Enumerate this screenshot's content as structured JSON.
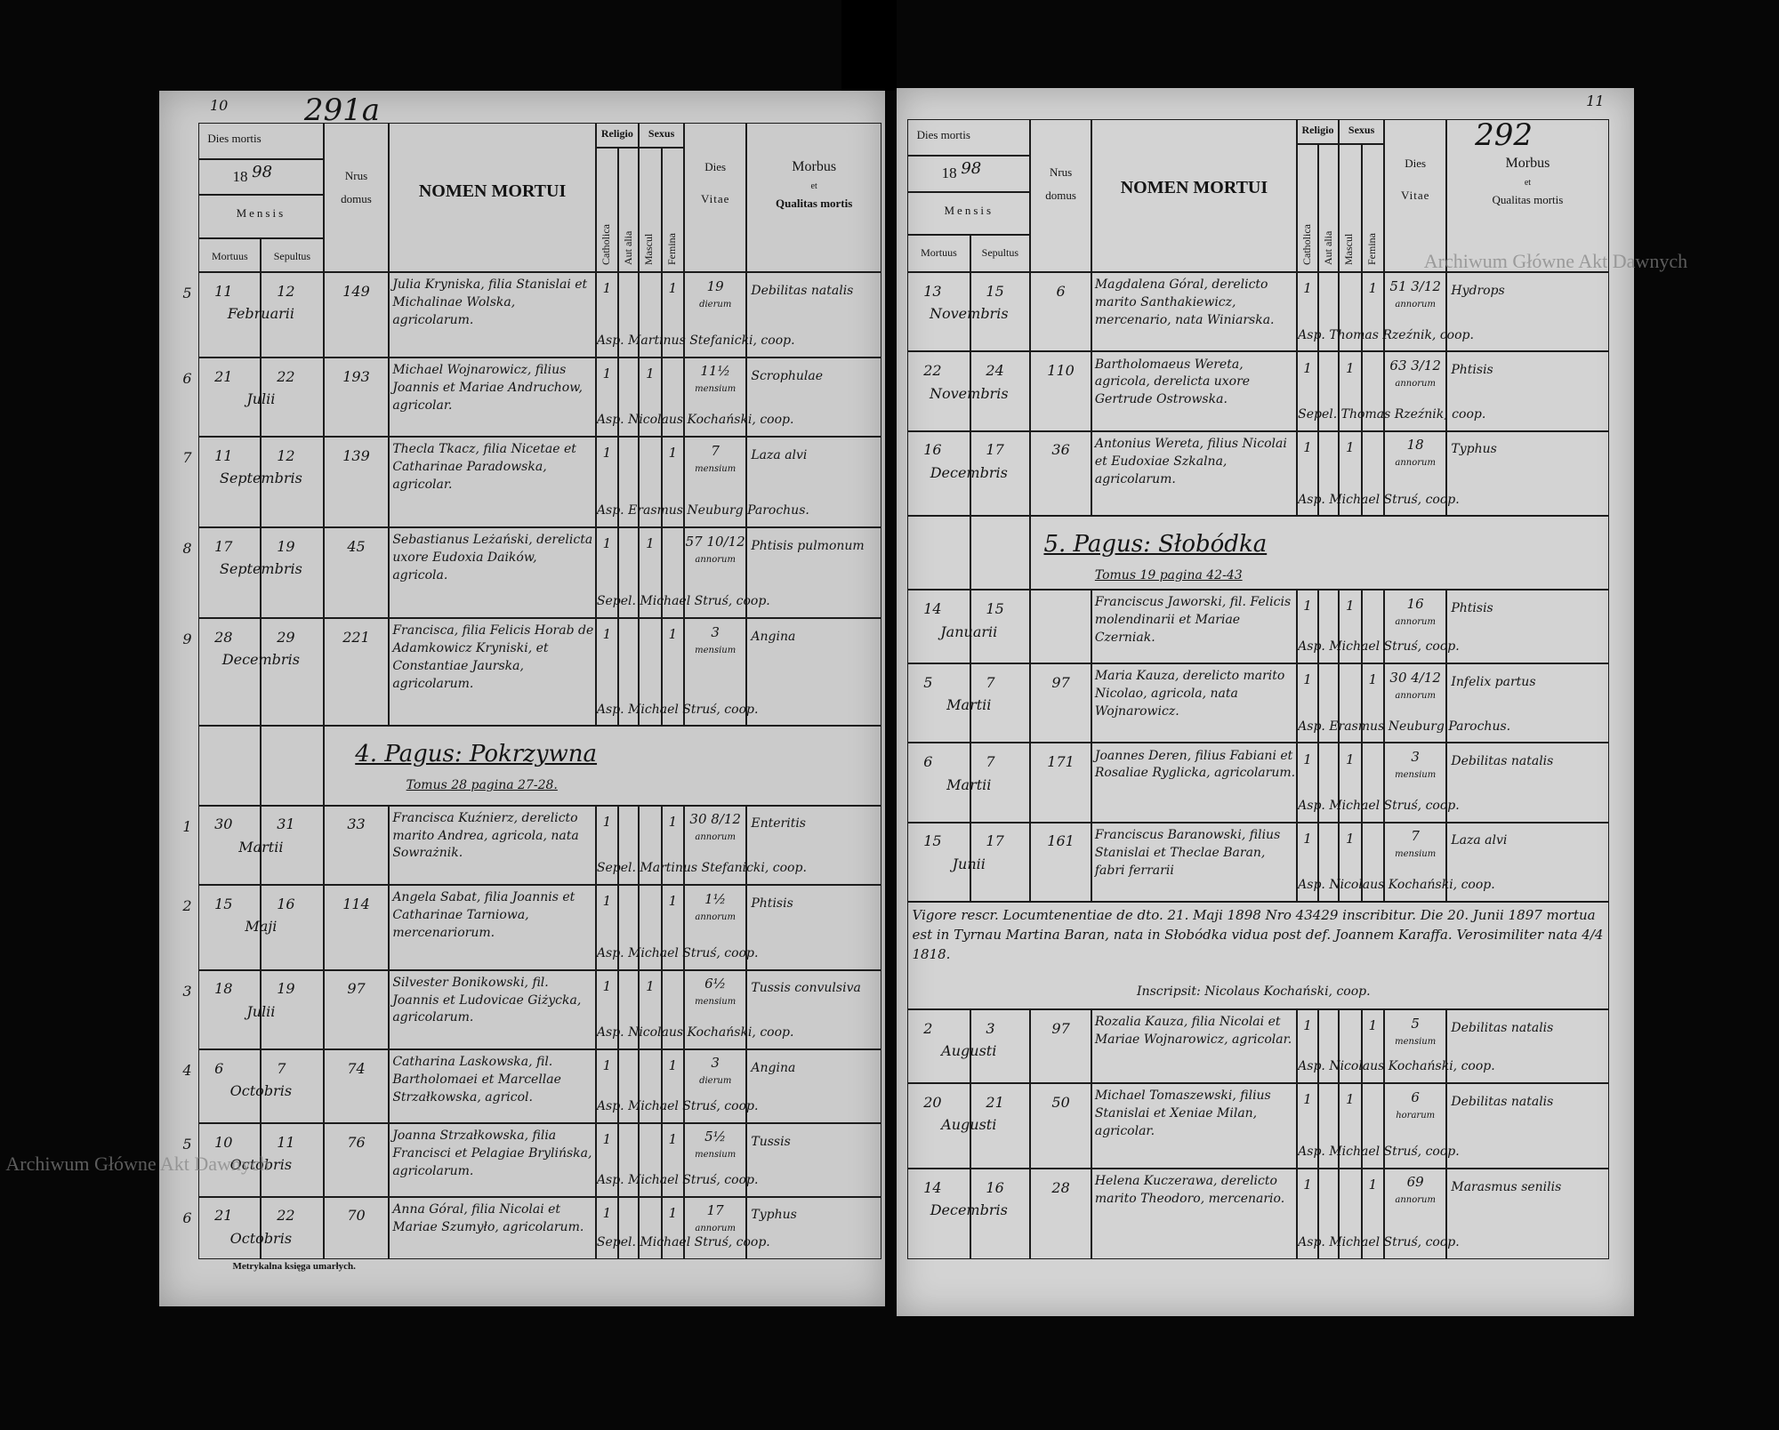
{
  "watermark": "Archiwum Główne Akt Dawnych",
  "header": {
    "dies_mortis": "Dies mortis",
    "year_prefix": "18",
    "mensis": "Mensis",
    "mortuus": "Mortuus",
    "sepultus": "Sepultus",
    "nrus": "Nrus",
    "domus": "domus",
    "nomen_mortui": "NOMEN MORTUI",
    "religio": "Religio",
    "sexus": "Sexus",
    "catholica": "Catholica",
    "aut_alia": "Aut alia",
    "mascul": "Mascul",
    "femina": "Femina",
    "dies": "Dies",
    "vitae": "Vitae",
    "morbus": "Morbus",
    "et": "et",
    "qualitas_mortis": "Qualitas mortis"
  },
  "pages": [
    {
      "page_number": "10",
      "folio": "291a",
      "year_suffix": "98",
      "rows": [
        {
          "no": "5",
          "mortuus": "11",
          "sepultus": "12",
          "mensis": "Februarii",
          "domus": "149",
          "nomen": "Julia Kryniska, filia Stanislai et Michalinae Wolska, agricolarum.",
          "catholica": "1",
          "femina": "1",
          "vitae": "19",
          "vitae_unit": "dierum",
          "morbus": "Debilitas natalis",
          "sepultura": "Asp. Martinus Stefanicki, coop."
        },
        {
          "no": "6",
          "mortuus": "21",
          "sepultus": "22",
          "mensis": "Julii",
          "domus": "193",
          "nomen": "Michael Wojnarowicz, filius Joannis et Mariae Andruchow, agricolar.",
          "catholica": "1",
          "mascul": "1",
          "vitae": "11½",
          "vitae_unit": "mensium",
          "morbus": "Scrophulae",
          "sepultura": "Asp. Nicolaus Kochański, coop."
        },
        {
          "no": "7",
          "mortuus": "11",
          "sepultus": "12",
          "mensis": "Septembris",
          "domus": "139",
          "nomen": "Thecla Tkacz, filia Nicetae et Catharinae Paradowska, agricolar.",
          "catholica": "1",
          "femina": "1",
          "vitae": "7",
          "vitae_unit": "mensium",
          "morbus": "Laza alvi",
          "sepultura": "Asp. Erasmus Neuburg Parochus."
        },
        {
          "no": "8",
          "mortuus": "17",
          "sepultus": "19",
          "mensis": "Septembris",
          "domus": "45",
          "nomen": "Sebastianus Leżański, derelicta uxore Eudoxia Daików, agricola.",
          "catholica": "1",
          "mascul": "1",
          "vitae": "57 10/12",
          "vitae_unit": "annorum",
          "morbus": "Phtisis pulmonum",
          "sepultura": "Sepel. Michael Struś, coop."
        },
        {
          "no": "9",
          "mortuus": "28",
          "sepultus": "29",
          "mensis": "Decembris",
          "domus": "221",
          "nomen": "Francisca, filia Felicis Horab de Adamkowicz Kryniski, et Constantiae Jaurska, agricolarum.",
          "catholica": "1",
          "femina": "1",
          "vitae": "3",
          "vitae_unit": "mensium",
          "morbus": "Angina",
          "sepultura": "Asp. Michael Struś, coop."
        },
        {
          "section": "4. Pagus: Pokrzywna",
          "tomus": "Tomus 28 pagina 27-28."
        },
        {
          "no": "1",
          "mortuus": "30",
          "sepultus": "31",
          "mensis": "Martii",
          "domus": "33",
          "nomen": "Francisca Kuźnierz, derelicto marito Andrea, agricola, nata Sowrażnik.",
          "catholica": "1",
          "femina": "1",
          "vitae": "30 8/12",
          "vitae_unit": "annorum",
          "morbus": "Enteritis",
          "sepultura": "Sepel. Martinus Stefanicki, coop."
        },
        {
          "no": "2",
          "mortuus": "15",
          "sepultus": "16",
          "mensis": "Maji",
          "domus": "114",
          "nomen": "Angela Sabat, filia Joannis et Catharinae Tarniowa, mercenariorum.",
          "catholica": "1",
          "femina": "1",
          "vitae": "1½",
          "vitae_unit": "annorum",
          "morbus": "Phtisis",
          "sepultura": "Asp. Michael Struś, coop."
        },
        {
          "no": "3",
          "mortuus": "18",
          "sepultus": "19",
          "mensis": "Julii",
          "domus": "97",
          "nomen": "Silvester Bonikowski, fil. Joannis et Ludovicae Giżycka, agricolarum.",
          "catholica": "1",
          "mascul": "1",
          "vitae": "6½",
          "vitae_unit": "mensium",
          "morbus": "Tussis convulsiva",
          "sepultura": "Asp. Nicolaus Kochański, coop."
        },
        {
          "no": "4",
          "mortuus": "6",
          "sepultus": "7",
          "mensis": "Octobris",
          "domus": "74",
          "nomen": "Catharina Laskowska, fil. Bartholomaei et Marcellae Strzałkowska, agricol.",
          "catholica": "1",
          "femina": "1",
          "vitae": "3",
          "vitae_unit": "dierum",
          "morbus": "Angina",
          "sepultura": "Asp. Michael Struś, coop."
        },
        {
          "no": "5",
          "mortuus": "10",
          "sepultus": "11",
          "mensis": "Octobris",
          "domus": "76",
          "nomen": "Joanna Strzałkowska, filia Francisci et Pelagiae Brylińska, agricolarum.",
          "catholica": "1",
          "femina": "1",
          "vitae": "5½",
          "vitae_unit": "mensium",
          "morbus": "Tussis",
          "sepultura": "Asp. Michael Struś, coop."
        },
        {
          "no": "6",
          "mortuus": "21",
          "sepultus": "22",
          "mensis": "Octobris",
          "domus": "70",
          "nomen": "Anna Góral, filia Nicolai et Mariae Szumyło, agricolarum.",
          "catholica": "1",
          "femina": "1",
          "vitae": "17",
          "vitae_unit": "annorum",
          "morbus": "Typhus",
          "sepultura": "Sepel. Michael Struś, coop."
        }
      ],
      "footer": "Metrykalna księga umarłych."
    },
    {
      "page_number": "11",
      "folio": "292",
      "year_suffix": "98",
      "rows": [
        {
          "mortuus": "13",
          "sepultus": "15",
          "mensis": "Novembris",
          "domus": "6",
          "nomen": "Magdalena Góral, derelicto marito Santhakiewicz, mercenario, nata Winiarska.",
          "catholica": "1",
          "femina": "1",
          "vitae": "51 3/12",
          "vitae_unit": "annorum",
          "morbus": "Hydrops",
          "sepultura": "Asp. Thomas Rzeźnik, coop."
        },
        {
          "mortuus": "22",
          "sepultus": "24",
          "mensis": "Novembris",
          "domus": "110",
          "nomen": "Bartholomaeus Wereta, agricola, derelicta uxore Gertrude Ostrowska.",
          "catholica": "1",
          "mascul": "1",
          "vitae": "63 3/12",
          "vitae_unit": "annorum",
          "morbus": "Phtisis",
          "sepultura": "Sepel. Thomas Rzeźnik, coop."
        },
        {
          "mortuus": "16",
          "sepultus": "17",
          "mensis": "Decembris",
          "domus": "36",
          "nomen": "Antonius Wereta, filius Nicolai et Eudoxiae Szkalna, agricolarum.",
          "catholica": "1",
          "mascul": "1",
          "vitae": "18",
          "vitae_unit": "annorum",
          "morbus": "Typhus",
          "sepultura": "Asp. Michael Struś, coop."
        },
        {
          "section": "5. Pagus: Słobódka",
          "tomus": "Tomus 19 pagina 42-43"
        },
        {
          "mortuus": "14",
          "sepultus": "15",
          "mensis": "Januarii",
          "nomen": "Franciscus Jaworski, fil. Felicis molendinarii et Mariae Czerniak.",
          "catholica": "1",
          "mascul": "1",
          "vitae": "16",
          "vitae_unit": "annorum",
          "morbus": "Phtisis",
          "sepultura": "Asp. Michael Struś, coop."
        },
        {
          "mortuus": "5",
          "sepultus": "7",
          "mensis": "Martii",
          "domus": "97",
          "nomen": "Maria Kauza, derelicto marito Nicolao, agricola, nata Wojnarowicz.",
          "catholica": "1",
          "femina": "1",
          "vitae": "30 4/12",
          "vitae_unit": "annorum",
          "morbus": "Infelix partus",
          "sepultura": "Asp. Erasmus Neuburg Parochus."
        },
        {
          "mortuus": "6",
          "sepultus": "7",
          "mensis": "Martii",
          "domus": "171",
          "nomen": "Joannes Deren, filius Fabiani et Rosaliae Ryglicka, agricolarum.",
          "catholica": "1",
          "mascul": "1",
          "vitae": "3",
          "vitae_unit": "mensium",
          "morbus": "Debilitas natalis",
          "sepultura": "Asp. Michael Struś, coop."
        },
        {
          "mortuus": "15",
          "sepultus": "17",
          "mensis": "Junii",
          "domus": "161",
          "nomen": "Franciscus Baranowski, filius Stanislai et Theclae Baran, fabri ferrarii",
          "catholica": "1",
          "mascul": "1",
          "vitae": "7",
          "vitae_unit": "mensium",
          "morbus": "Laza alvi",
          "sepultura": "Asp. Nicolaus Kochański, coop."
        },
        {
          "note": "Vigore rescr. Locumtenentiae de dto. 21. Maji 1898 Nro 43429 inscribitur. Die 20. Junii 1897 mortua est in Tyrnau Martina Baran, nata in Słobódka vidua post def. Joannem Karaffa. Verosimiliter nata 4/4 1818.",
          "inscripsit": "Inscripsit: Nicolaus Kochański, coop."
        },
        {
          "mortuus": "2",
          "sepultus": "3",
          "mensis": "Augusti",
          "domus": "97",
          "nomen": "Rozalia Kauza, filia Nicolai et Mariae Wojnarowicz, agricolar.",
          "catholica": "1",
          "femina": "1",
          "vitae": "5",
          "vitae_unit": "mensium",
          "morbus": "Debilitas natalis",
          "sepultura": "Asp. Nicolaus Kochański, coop."
        },
        {
          "mortuus": "20",
          "sepultus": "21",
          "mensis": "Augusti",
          "domus": "50",
          "nomen": "Michael Tomaszewski, filius Stanislai et Xeniae Milan, agricolar.",
          "catholica": "1",
          "mascul": "1",
          "vitae": "6",
          "vitae_unit": "horarum",
          "morbus": "Debilitas natalis",
          "sepultura": "Asp. Michael Struś, coop."
        },
        {
          "mortuus": "14",
          "sepultus": "16",
          "mensis": "Decembris",
          "domus": "28",
          "nomen": "Helena Kuczerawa, derelicto marito Theodoro, mercenario.",
          "catholica": "1",
          "femina": "1",
          "vitae": "69",
          "vitae_unit": "annorum",
          "morbus": "Marasmus senilis",
          "sepultura": "Asp. Michael Struś, coop."
        }
      ]
    }
  ]
}
